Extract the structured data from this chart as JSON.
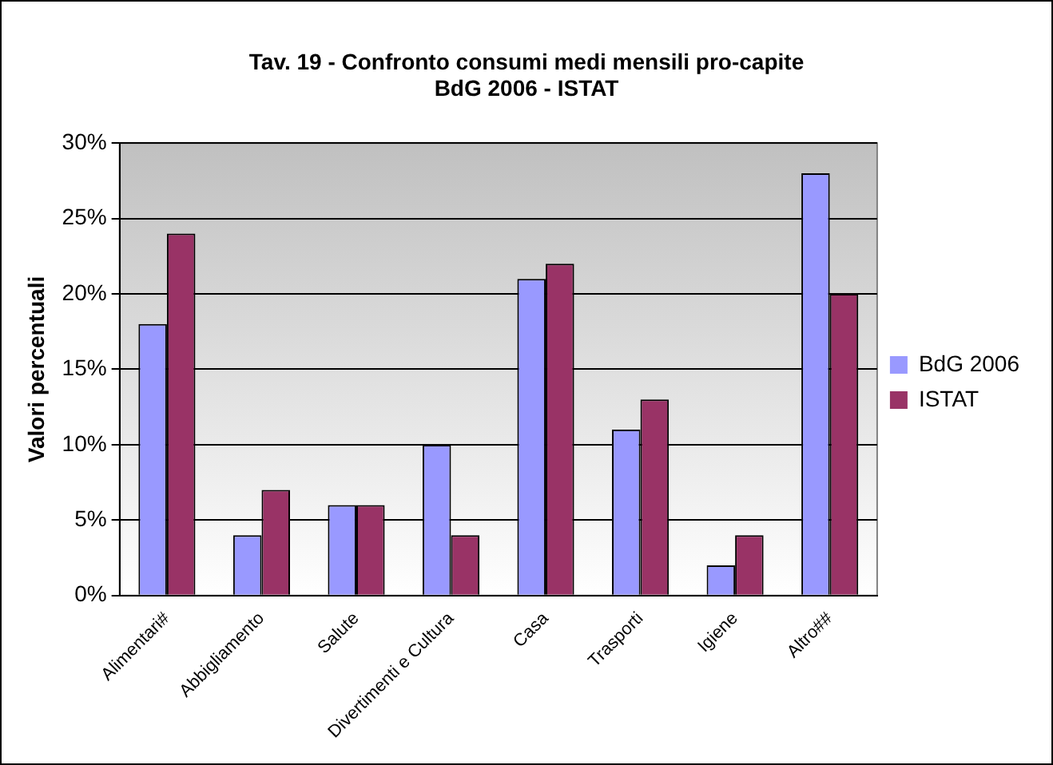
{
  "chart_data": {
    "type": "bar",
    "title": "Tav. 19 - Confronto consumi medi mensili pro-capite\nBdG 2006 - ISTAT",
    "ylabel": "Valori percentuali",
    "categories": [
      "Alimentari#",
      "Abbigliamento",
      "Salute",
      "Divertimenti e Cultura",
      "Casa",
      "Trasporti",
      "Igiene",
      "Altro##"
    ],
    "series": [
      {
        "name": "BdG 2006",
        "color": "#9999ff",
        "values": [
          18,
          4,
          6,
          10,
          21,
          11,
          2,
          28
        ]
      },
      {
        "name": "ISTAT",
        "color": "#993366",
        "values": [
          24,
          7,
          6,
          4,
          22,
          13,
          4,
          20
        ]
      }
    ],
    "ylim": [
      0,
      30
    ],
    "yticks": [
      {
        "value": 0,
        "label": "0%"
      },
      {
        "value": 5,
        "label": "5%"
      },
      {
        "value": 10,
        "label": "10%"
      },
      {
        "value": 15,
        "label": "15%"
      },
      {
        "value": 20,
        "label": "20%"
      },
      {
        "value": 25,
        "label": "25%"
      },
      {
        "value": 30,
        "label": "30%"
      }
    ],
    "grid": "y",
    "legend": "right"
  }
}
